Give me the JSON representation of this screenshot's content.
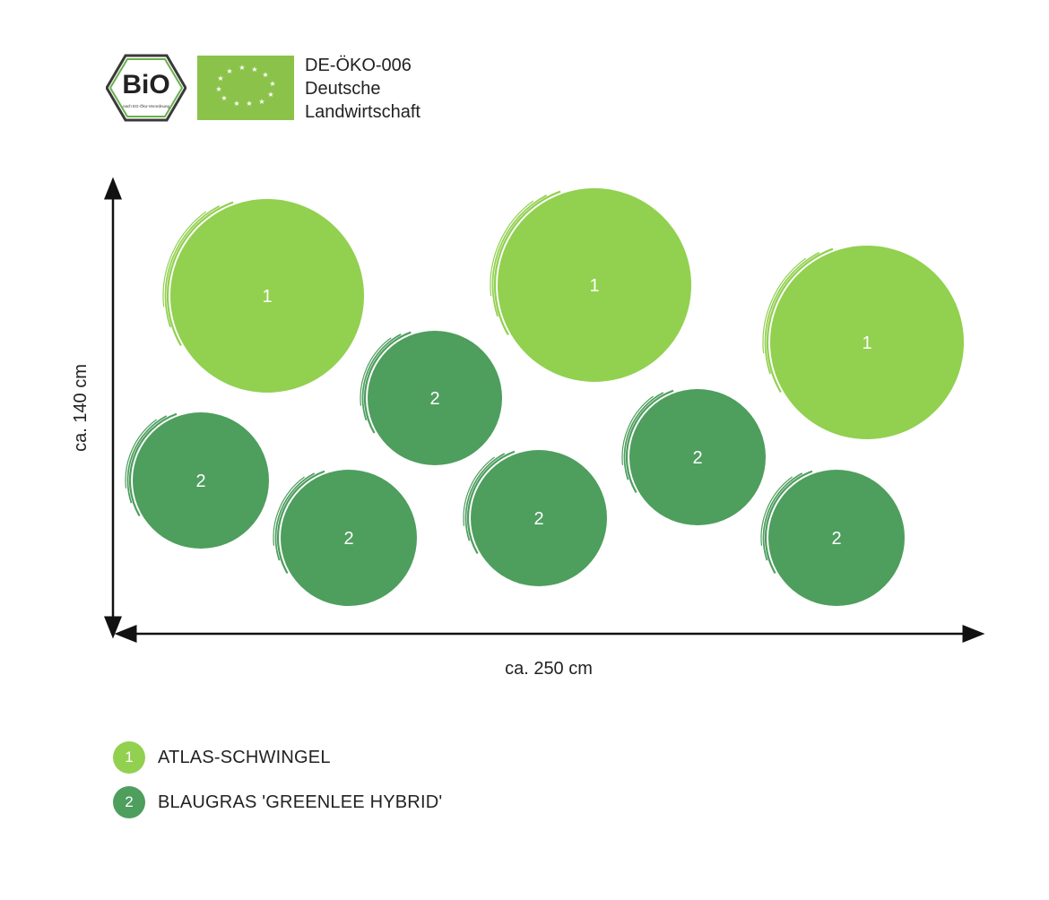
{
  "header": {
    "bio_logo_text": "BiO",
    "bio_logo_subtext": "nach EG-Öko-Verordnung",
    "cert_lines": [
      "DE-ÖKO-006",
      "Deutsche",
      "Landwirtschaft"
    ]
  },
  "plan": {
    "height_label": "ca. 140 cm",
    "width_label": "ca. 250 cm",
    "plants": [
      {
        "number": "1"
      },
      {
        "number": "1"
      },
      {
        "number": "1"
      },
      {
        "number": "2"
      },
      {
        "number": "2"
      },
      {
        "number": "2"
      },
      {
        "number": "2"
      },
      {
        "number": "2"
      },
      {
        "number": "2"
      }
    ]
  },
  "legend": [
    {
      "number": "1",
      "label": "ATLAS-SCHWINGEL",
      "color": "#92d050"
    },
    {
      "number": "2",
      "label": "BLAUGRAS 'GREENLEE HYBRID'",
      "color": "#4e9e5e"
    }
  ],
  "colors": {
    "plant_1": "#92d050",
    "plant_2": "#4e9e5e",
    "axis": "#111111"
  }
}
